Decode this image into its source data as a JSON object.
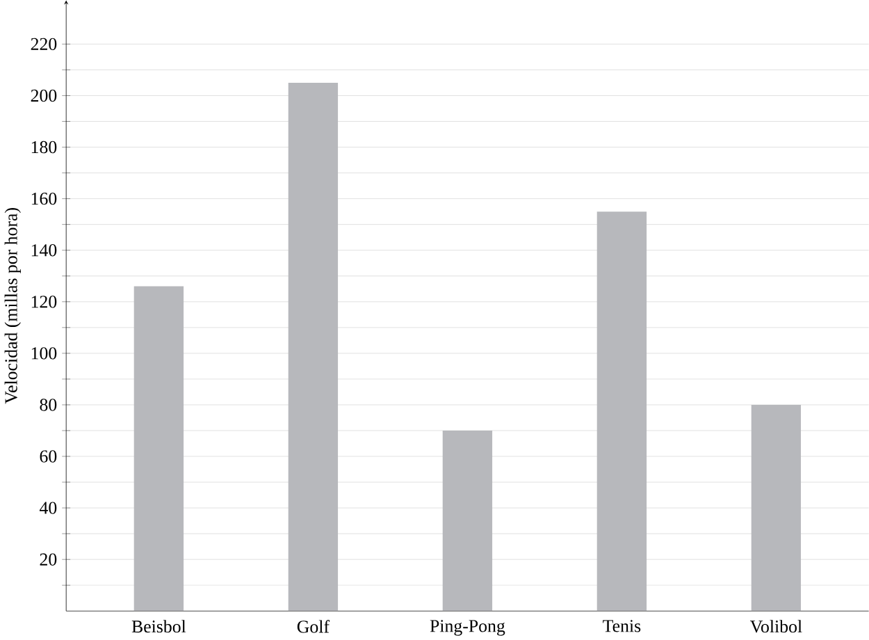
{
  "chart_data": {
    "type": "bar",
    "ylabel": "Velocidad (millas por hora)",
    "categories": [
      "Beisbol",
      "Golf",
      "Ping-Pong",
      "Tenis",
      "Volibol"
    ],
    "values": [
      126,
      205,
      70,
      155,
      80
    ],
    "color": "#b7b8bc",
    "ylim": [
      0,
      237
    ],
    "yticks": [
      {
        "value": 10,
        "label": null
      },
      20,
      {
        "value": 30,
        "label": null
      },
      40,
      {
        "value": 50,
        "label": null
      },
      60,
      {
        "value": 70,
        "label": null
      },
      80,
      {
        "value": 90,
        "label": null
      },
      100,
      {
        "value": 110,
        "label": null
      },
      120,
      {
        "value": 130,
        "label": null
      },
      140,
      {
        "value": 150,
        "label": null
      },
      160,
      {
        "value": 170,
        "label": null
      },
      180,
      {
        "value": 190,
        "label": null
      },
      200,
      {
        "value": 210,
        "label": null
      },
      220
    ],
    "grid": true
  }
}
